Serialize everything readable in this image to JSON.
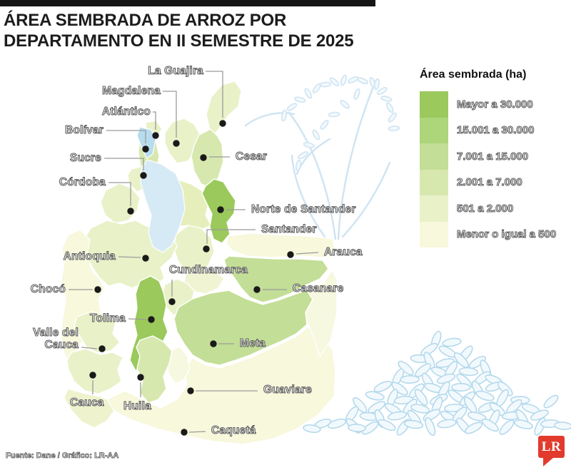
{
  "title": {
    "line1": "ÁREA SEMBRADA DE ARROZ POR",
    "line2": "DEPARTAMENTO EN II SEMESTRE DE 2025"
  },
  "header": {
    "bar_color": "#151515"
  },
  "legend": {
    "title": "Área sembrada (ha)",
    "items": [
      {
        "label": "Mayor a 30.000",
        "color": "#9bc95c"
      },
      {
        "label": "15.001 a 30.000",
        "color": "#add579"
      },
      {
        "label": "7.001 a 15.000",
        "color": "#c3de96"
      },
      {
        "label": "2.001 a 7.000",
        "color": "#d7e8af"
      },
      {
        "label": "501 a 2.000",
        "color": "#e9f1c8"
      },
      {
        "label": "Menor o igual a 500",
        "color": "#f7f8dc"
      }
    ]
  },
  "map": {
    "departments": [
      {
        "id": "la-guajira",
        "name": "La Guajira",
        "category": 4
      },
      {
        "id": "magdalena",
        "name": "Magdalena",
        "category": 4
      },
      {
        "id": "atlantico",
        "name": "Atlántico",
        "category": 4
      },
      {
        "id": "bolivar",
        "name": "Bolívar",
        "category": 3
      },
      {
        "id": "sucre",
        "name": "Sucre",
        "category": 4
      },
      {
        "id": "cordoba",
        "name": "Córdoba",
        "category": 4
      },
      {
        "id": "cesar",
        "name": "Cesar",
        "category": 3
      },
      {
        "id": "norte-de-santander",
        "name": "Norte de Santander",
        "category": 0
      },
      {
        "id": "santander",
        "name": "Santander",
        "category": 4
      },
      {
        "id": "arauca",
        "name": "Arauca",
        "category": 5
      },
      {
        "id": "casanare",
        "name": "Casanare",
        "category": 2
      },
      {
        "id": "cundinamarca",
        "name": "Cundinamarca",
        "category": 4
      },
      {
        "id": "antioquia",
        "name": "Antioquia",
        "category": 4
      },
      {
        "id": "choco",
        "name": "Chocó",
        "category": 5
      },
      {
        "id": "tolima",
        "name": "Tolima",
        "category": 0
      },
      {
        "id": "valle-del-cauca",
        "name": "Valle del Cauca",
        "label": "Valle del\nCauca",
        "category": 4
      },
      {
        "id": "cauca",
        "name": "Cauca",
        "category": 4
      },
      {
        "id": "huila",
        "name": "Huila",
        "category": 3
      },
      {
        "id": "meta",
        "name": "Meta",
        "category": 2
      },
      {
        "id": "guaviare",
        "name": "Guaviare",
        "category": 5
      },
      {
        "id": "caqueta",
        "name": "Caquetá",
        "category": 5
      }
    ]
  },
  "chart_data": {
    "type": "heatmap",
    "subtype": "choropleth-map-of-colombia",
    "title": "ÁREA SEMBRADA DE ARROZ POR DEPARTAMENTO EN II SEMESTRE DE 2025",
    "legend_title": "Área sembrada (ha)",
    "bins": [
      "Mayor a 30.000",
      "15.001 a 30.000",
      "7.001 a 15.000",
      "2.001 a 7.000",
      "501 a 2.000",
      "Menor o igual a 500"
    ],
    "departments": [
      {
        "name": "Tolima",
        "bin": "Mayor a 30.000"
      },
      {
        "name": "Norte de Santander",
        "bin": "Mayor a 30.000"
      },
      {
        "name": "Casanare",
        "bin": "7.001 a 15.000"
      },
      {
        "name": "Meta",
        "bin": "7.001 a 15.000"
      },
      {
        "name": "Cesar",
        "bin": "2.001 a 7.000"
      },
      {
        "name": "Huila",
        "bin": "2.001 a 7.000"
      },
      {
        "name": "Bolívar",
        "bin": "2.001 a 7.000"
      },
      {
        "name": "La Guajira",
        "bin": "501 a 2.000"
      },
      {
        "name": "Magdalena",
        "bin": "501 a 2.000"
      },
      {
        "name": "Atlántico",
        "bin": "501 a 2.000"
      },
      {
        "name": "Sucre",
        "bin": "501 a 2.000"
      },
      {
        "name": "Córdoba",
        "bin": "501 a 2.000"
      },
      {
        "name": "Santander",
        "bin": "501 a 2.000"
      },
      {
        "name": "Cundinamarca",
        "bin": "501 a 2.000"
      },
      {
        "name": "Antioquia",
        "bin": "501 a 2.000"
      },
      {
        "name": "Valle del Cauca",
        "bin": "501 a 2.000"
      },
      {
        "name": "Cauca",
        "bin": "501 a 2.000"
      },
      {
        "name": "Chocó",
        "bin": "Menor o igual a 500"
      },
      {
        "name": "Arauca",
        "bin": "Menor o igual a 500"
      },
      {
        "name": "Guaviare",
        "bin": "Menor o igual a 500"
      },
      {
        "name": "Caquetá",
        "bin": "Menor o igual a 500"
      }
    ]
  },
  "footer": {
    "source": "Fuente: Dane / Gráfico: LR-AA"
  },
  "logo": {
    "text": "LR",
    "color": "#e23b2e"
  },
  "decor": {
    "plant_icon": "rice-plant-illustration",
    "pile_icon": "rice-grains-pile",
    "stroke": "#cfe4f2",
    "fill": "#f2f9fd",
    "pile_stroke": "#b5d9ec",
    "water_dark": "#b7dcee",
    "water_light": "#d6eaf6"
  }
}
